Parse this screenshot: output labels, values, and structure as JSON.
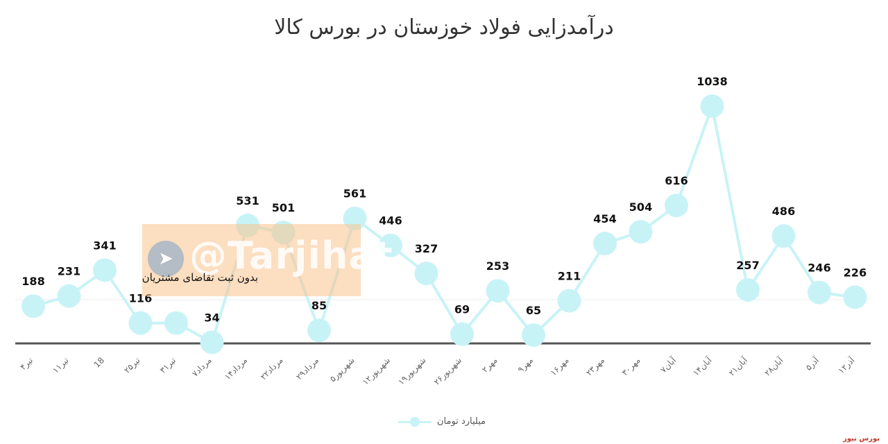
{
  "chart_data": {
    "type": "line",
    "title": "درآمدزایی فولاد خوزستان در بورس کالا",
    "categories": [
      "۴تیر",
      "۱۱تیر",
      "18",
      "۲۵تیر",
      "۳۱تیر",
      "۷مرداد",
      "۱۴مرداد",
      "۲۲مرداد",
      "۲۹مرداد",
      "۵شهریور",
      "۱۲شهریور",
      "۱۹شهریور",
      "۲۶شهریور",
      "۲مهر",
      "۹مهر",
      "۱۶مهر",
      "۲۳مهر",
      "۳۰مهر",
      "۷آبان",
      "۱۴آبان",
      "۲۱آبان",
      "۲۸آبان",
      "۵آذر",
      "۱۲آذر"
    ],
    "series": [
      {
        "name": "میلیارد تومان",
        "values": [
          188,
          231,
          341,
          116,
          116,
          34,
          531,
          501,
          85,
          561,
          446,
          327,
          69,
          253,
          65,
          211,
          454,
          504,
          616,
          1038,
          257,
          486,
          246,
          226
        ],
        "labels": [
          "188",
          "231",
          "341",
          "116",
          "",
          "34",
          "531",
          "501",
          "85",
          "561",
          "446",
          "327",
          "69",
          "253",
          "65",
          "211",
          "454",
          "504",
          "616",
          "1038",
          "257",
          "486",
          "246",
          "226"
        ]
      }
    ],
    "ylim": [
      0,
      1150
    ],
    "grid": false,
    "legend": "bottom",
    "annotation": "بدون ثبت تقاضای مشتریان",
    "colors": {
      "line": "#c8f3f6",
      "marker": "#c8f3f6",
      "baseline": "#555555",
      "label": "#111111"
    }
  },
  "watermark": {
    "text": "@Tarjihat",
    "icon": "telegram-icon"
  },
  "source": "بورس نیوز"
}
